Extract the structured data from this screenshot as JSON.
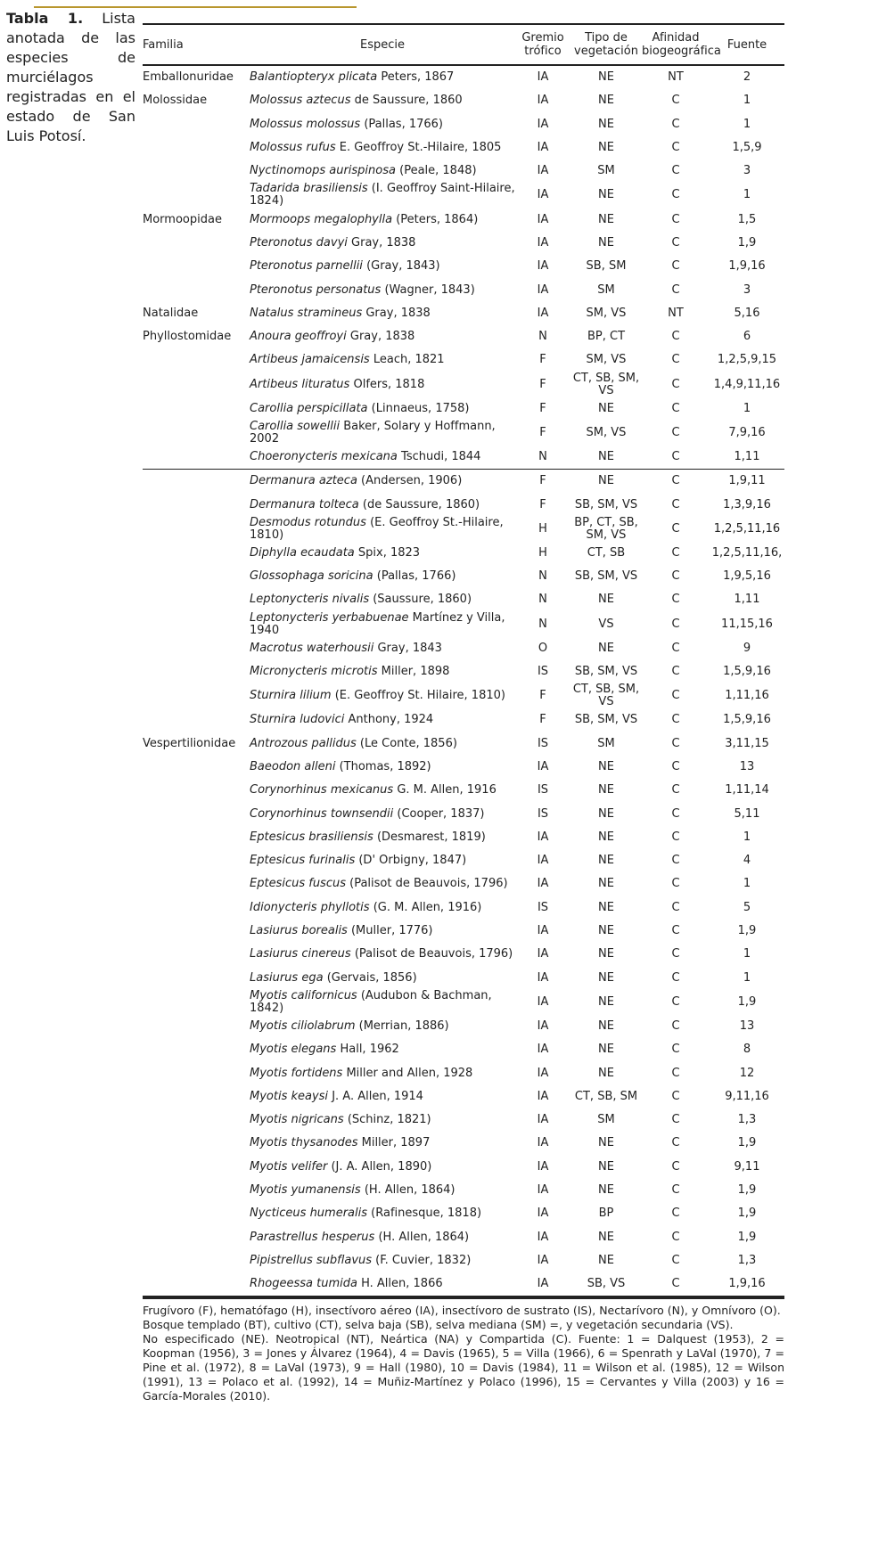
{
  "caption": {
    "label": "Tabla 1.",
    "text": "Lista anotada de las especies de murciélagos registradas en el estado de San Luis Potosí."
  },
  "table": {
    "header": {
      "familia": "Familia",
      "especie": "Especie",
      "gremio": [
        "Gremio",
        "trófico"
      ],
      "vegetacion": [
        "Tipo de",
        "vegetación"
      ],
      "afinidad": [
        "Afinidad",
        "biogeográfica"
      ],
      "fuente": "Fuente"
    },
    "rows": [
      {
        "family": "Emballonuridae",
        "name": "Balantiopteryx plicata",
        "author": "Peters, 1867",
        "gremio": "IA",
        "vegetacion": "NE",
        "afinidad": "NT",
        "fuente": "2"
      },
      {
        "family": "Molossidae",
        "name": "Molossus aztecus",
        "author": "de Saussure, 1860",
        "gremio": "IA",
        "vegetacion": "NE",
        "afinidad": "C",
        "fuente": "1"
      },
      {
        "name": "Molossus molossus",
        "author": "(Pallas, 1766)",
        "gremio": "IA",
        "vegetacion": "NE",
        "afinidad": "C",
        "fuente": "1"
      },
      {
        "name": "Molossus rufus",
        "author": "E. Geoffroy St.-Hilaire, 1805",
        "gremio": "IA",
        "vegetacion": "NE",
        "afinidad": "C",
        "fuente": "1,5,9"
      },
      {
        "name": "Nyctinomops aurispinosa",
        "author": "(Peale, 1848)",
        "gremio": "IA",
        "vegetacion": "SM",
        "afinidad": "C",
        "fuente": "3"
      },
      {
        "name": "Tadarida brasiliensis",
        "author": "(I. Geoffroy Saint-Hilaire, 1824)",
        "gremio": "IA",
        "vegetacion": "NE",
        "afinidad": "C",
        "fuente": "1"
      },
      {
        "family": "Mormoopidae",
        "name": "Mormoops megalophylla",
        "author": "(Peters, 1864)",
        "gremio": "IA",
        "vegetacion": "NE",
        "afinidad": "C",
        "fuente": "1,5"
      },
      {
        "name": "Pteronotus davyi",
        "author": "Gray, 1838",
        "gremio": "IA",
        "vegetacion": "NE",
        "afinidad": "C",
        "fuente": "1,9"
      },
      {
        "name": "Pteronotus parnellii",
        "author": "(Gray, 1843)",
        "gremio": "IA",
        "vegetacion": "SB, SM",
        "afinidad": "C",
        "fuente": "1,9,16"
      },
      {
        "name": "Pteronotus personatus",
        "author": "(Wagner, 1843)",
        "gremio": "IA",
        "vegetacion": "SM",
        "afinidad": "C",
        "fuente": "3"
      },
      {
        "family": "Natalidae",
        "name": "Natalus stramineus",
        "author": "Gray, 1838",
        "gremio": "IA",
        "vegetacion": "SM, VS",
        "afinidad": "NT",
        "fuente": "5,16"
      },
      {
        "family": "Phyllostomidae",
        "name": "Anoura geoffroyi",
        "author": "Gray, 1838",
        "gremio": "N",
        "vegetacion": "BP, CT",
        "afinidad": "C",
        "fuente": "6"
      },
      {
        "name": "Artibeus jamaicensis",
        "author": "Leach, 1821",
        "gremio": "F",
        "vegetacion": "SM, VS",
        "afinidad": "C",
        "fuente": "1,2,5,9,15"
      },
      {
        "name": "Artibeus lituratus",
        "author": "Olfers, 1818",
        "gremio": "F",
        "vegetacion": "CT, SB, SM, VS",
        "afinidad": "C",
        "fuente": "1,4,9,11,16"
      },
      {
        "name": "Carollia perspicillata",
        "author": "(Linnaeus, 1758)",
        "gremio": "F",
        "vegetacion": "NE",
        "afinidad": "C",
        "fuente": "1"
      },
      {
        "name": "Carollia sowellii",
        "author": "Baker, Solary y Hoffmann, 2002",
        "gremio": "F",
        "vegetacion": "SM, VS",
        "afinidad": "C",
        "fuente": "7,9,16"
      },
      {
        "name": "Choeronycteris mexicana",
        "author": "Tschudi, 1844",
        "gremio": "N",
        "vegetacion": "NE",
        "afinidad": "C",
        "fuente": "1,11"
      },
      {
        "name": "Dermanura azteca",
        "author": "(Andersen, 1906)",
        "gremio": "F",
        "vegetacion": "NE",
        "afinidad": "C",
        "fuente": "1,9,11"
      },
      {
        "name": "Dermanura tolteca",
        "author": "(de Saussure, 1860)",
        "gremio": "F",
        "vegetacion": "SB, SM, VS",
        "afinidad": "C",
        "fuente": "1,3,9,16"
      },
      {
        "name": "Desmodus rotundus",
        "author": "(E. Geoffroy St.-Hilaire, 1810)",
        "gremio": "H",
        "vegetacion": "BP, CT, SB, SM, VS",
        "afinidad": "C",
        "fuente": "1,2,5,11,16"
      },
      {
        "name": "Diphylla ecaudata",
        "author": "Spix, 1823",
        "gremio": "H",
        "vegetacion": "CT, SB",
        "afinidad": "C",
        "fuente": "1,2,5,11,16,"
      },
      {
        "name": "Glossophaga soricina",
        "author": "(Pallas, 1766)",
        "gremio": "N",
        "vegetacion": "SB, SM, VS",
        "afinidad": "C",
        "fuente": "1,9,5,16"
      },
      {
        "name": "Leptonycteris nivalis",
        "author": "(Saussure, 1860)",
        "gremio": "N",
        "vegetacion": "NE",
        "afinidad": "C",
        "fuente": "1,11"
      },
      {
        "name": "Leptonycteris yerbabuenae",
        "author": "Martínez y Villa, 1940",
        "gremio": "N",
        "vegetacion": "VS",
        "afinidad": "C",
        "fuente": "11,15,16"
      },
      {
        "name": "Macrotus waterhousii",
        "author": "Gray, 1843",
        "gremio": "O",
        "vegetacion": "NE",
        "afinidad": "C",
        "fuente": "9"
      },
      {
        "name": "Micronycteris microtis",
        "author": "Miller, 1898",
        "gremio": "IS",
        "vegetacion": "SB, SM, VS",
        "afinidad": "C",
        "fuente": "1,5,9,16"
      },
      {
        "name": "Sturnira lilium",
        "author": "(E. Geoffroy St. Hilaire, 1810)",
        "gremio": "F",
        "vegetacion": "CT, SB, SM, VS",
        "afinidad": "C",
        "fuente": "1,11,16"
      },
      {
        "name": "Sturnira ludovici",
        "author": "Anthony, 1924",
        "gremio": "F",
        "vegetacion": "SB, SM, VS",
        "afinidad": "C",
        "fuente": "1,5,9,16"
      },
      {
        "family": "Vespertilionidae",
        "name": "Antrozous pallidus",
        "author": "(Le Conte, 1856)",
        "gremio": "IS",
        "vegetacion": "SM",
        "afinidad": "C",
        "fuente": "3,11,15"
      },
      {
        "name": "Baeodon alleni",
        "author": "(Thomas, 1892)",
        "gremio": "IA",
        "vegetacion": "NE",
        "afinidad": "C",
        "fuente": "13"
      },
      {
        "name": "Corynorhinus mexicanus",
        "author": "G. M. Allen, 1916",
        "gremio": "IS",
        "vegetacion": "NE",
        "afinidad": "C",
        "fuente": "1,11,14"
      },
      {
        "name": "Corynorhinus townsendii",
        "author": "(Cooper, 1837)",
        "gremio": "IS",
        "vegetacion": "NE",
        "afinidad": "C",
        "fuente": "5,11"
      },
      {
        "name": "Eptesicus brasiliensis",
        "author": "(Desmarest, 1819)",
        "gremio": "IA",
        "vegetacion": "NE",
        "afinidad": "C",
        "fuente": "1"
      },
      {
        "name": "Eptesicus furinalis",
        "author": "(D' Orbigny, 1847)",
        "gremio": "IA",
        "vegetacion": "NE",
        "afinidad": "C",
        "fuente": "4"
      },
      {
        "name": "Eptesicus fuscus",
        "author": "(Palisot de Beauvois, 1796)",
        "gremio": "IA",
        "vegetacion": "NE",
        "afinidad": "C",
        "fuente": "1"
      },
      {
        "name": "Idionycteris phyllotis",
        "author": "(G. M. Allen, 1916)",
        "gremio": "IS",
        "vegetacion": "NE",
        "afinidad": "C",
        "fuente": "5"
      },
      {
        "name": "Lasiurus borealis",
        "author": "(Muller, 1776)",
        "gremio": "IA",
        "vegetacion": "NE",
        "afinidad": "C",
        "fuente": "1,9"
      },
      {
        "name": "Lasiurus cinereus",
        "author": "(Palisot de Beauvois, 1796)",
        "gremio": "IA",
        "vegetacion": "NE",
        "afinidad": "C",
        "fuente": "1"
      },
      {
        "name": "Lasiurus ega",
        "author": "(Gervais, 1856)",
        "gremio": "IA",
        "vegetacion": "NE",
        "afinidad": "C",
        "fuente": "1"
      },
      {
        "name": "Myotis californicus",
        "author": "(Audubon & Bachman, 1842)",
        "gremio": "IA",
        "vegetacion": "NE",
        "afinidad": "C",
        "fuente": "1,9"
      },
      {
        "name": "Myotis ciliolabrum",
        "author": "(Merrian, 1886)",
        "gremio": "IA",
        "vegetacion": "NE",
        "afinidad": "C",
        "fuente": "13"
      },
      {
        "name": "Myotis elegans",
        "author": "Hall, 1962",
        "gremio": "IA",
        "vegetacion": "NE",
        "afinidad": "C",
        "fuente": "8"
      },
      {
        "name": "Myotis fortidens",
        "author": "Miller and Allen, 1928",
        "gremio": "IA",
        "vegetacion": "NE",
        "afinidad": "C",
        "fuente": "12"
      },
      {
        "name": "Myotis keaysi",
        "author": "J. A. Allen, 1914",
        "gremio": "IA",
        "vegetacion": "CT, SB, SM",
        "afinidad": "C",
        "fuente": "9,11,16"
      },
      {
        "name": "Myotis nigricans",
        "author": "(Schinz, 1821)",
        "gremio": "IA",
        "vegetacion": "SM",
        "afinidad": "C",
        "fuente": "1,3"
      },
      {
        "name": "Myotis thysanodes",
        "author": "Miller, 1897",
        "gremio": "IA",
        "vegetacion": "NE",
        "afinidad": "C",
        "fuente": "1,9"
      },
      {
        "name": "Myotis velifer",
        "author": "(J. A. Allen, 1890)",
        "gremio": "IA",
        "vegetacion": "NE",
        "afinidad": "C",
        "fuente": "9,11"
      },
      {
        "name": "Myotis yumanensis",
        "author": "(H. Allen, 1864)",
        "gremio": "IA",
        "vegetacion": "NE",
        "afinidad": "C",
        "fuente": "1,9"
      },
      {
        "name": "Nycticeus humeralis",
        "author": "(Rafinesque, 1818)",
        "gremio": "IA",
        "vegetacion": "BP",
        "afinidad": "C",
        "fuente": "1,9"
      },
      {
        "name": "Parastrellus hesperus",
        "author": "(H. Allen, 1864)",
        "gremio": "IA",
        "vegetacion": "NE",
        "afinidad": "C",
        "fuente": "1,9"
      },
      {
        "name": "Pipistrellus subflavus",
        "author": "(F. Cuvier, 1832)",
        "gremio": "IA",
        "vegetacion": "NE",
        "afinidad": "C",
        "fuente": "1,3"
      },
      {
        "name": "Rhogeessa tumida",
        "author": "H. Allen, 1866",
        "gremio": "IA",
        "vegetacion": "SB, VS",
        "afinidad": "C",
        "fuente": "1,9,16"
      }
    ]
  },
  "footnote": [
    "Frugívoro (F), hematófago (H), insectívoro aéreo (IA), insectívoro de sustrato (IS), Nectarívoro (N), y Omnívoro (O).",
    "Bosque templado (BT), cultivo (CT), selva baja (SB), selva mediana (SM) =, y vegetación secundaria (VS).",
    "No especificado (NE). Neotropical (NT), Neártica (NA) y Compartida (C). Fuente: 1 = Dalquest (1953), 2 = Koopman (1956), 3 = Jones y Álvarez (1964), 4 = Davis (1965), 5 = Villa (1966), 6 = Spenrath y LaVal (1970), 7 = Pine et al. (1972), 8 = LaVal (1973), 9 = Hall (1980), 10 = Davis (1984), 11 = Wilson et al. (1985), 12 = Wilson (1991), 13 = Polaco et al. (1992), 14 = Muñiz-Martínez y Polaco (1996), 15 = Cervantes y Villa (2003) y 16 = García-Morales (2010)."
  ]
}
